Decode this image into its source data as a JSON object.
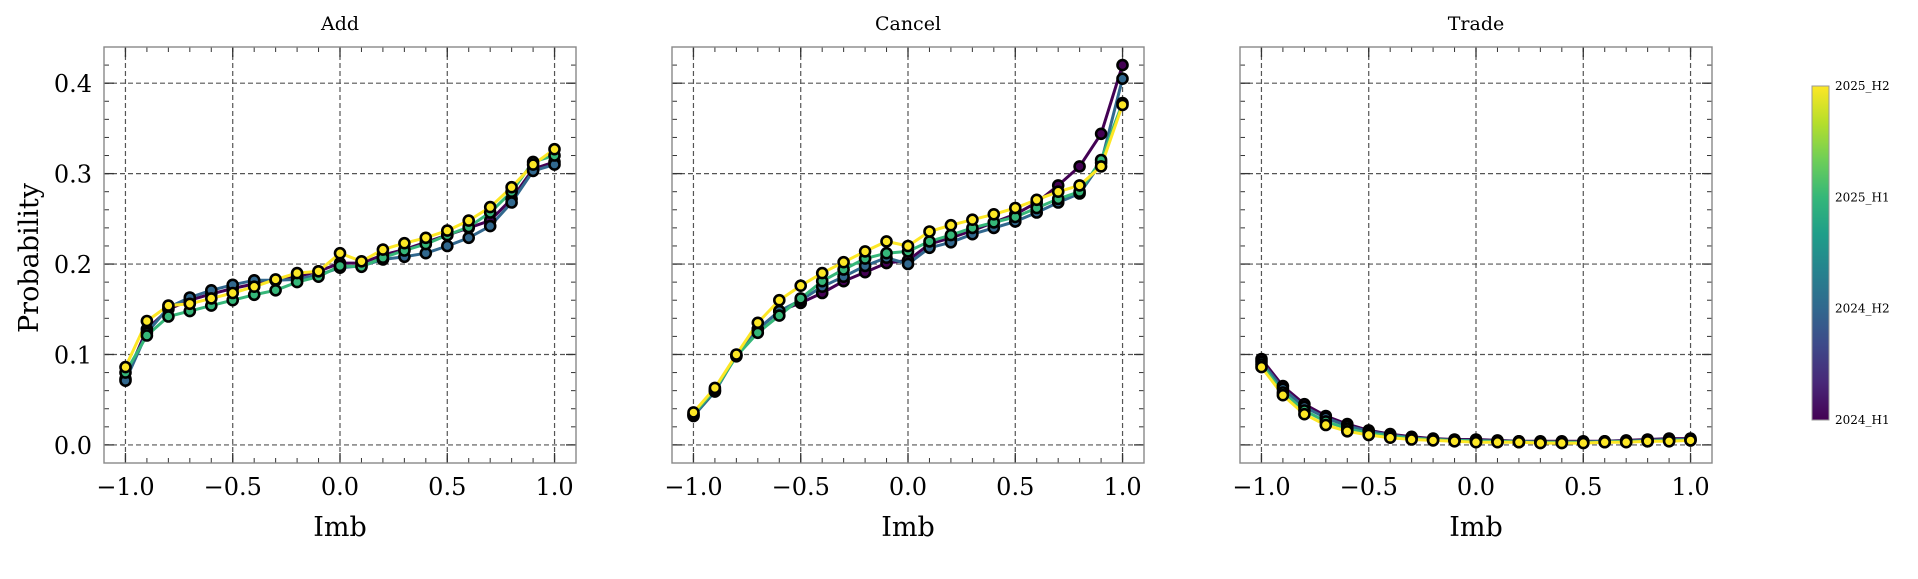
{
  "figure": {
    "ylabel": "Probability"
  },
  "chart_data": [
    {
      "type": "line",
      "title": "Add",
      "xlabel": "Imb",
      "ylabel": "Probability",
      "xlim": [
        -1.1,
        1.1
      ],
      "ylim": [
        -0.02,
        0.44
      ],
      "xticks": [
        -1.0,
        -0.5,
        0.0,
        0.5,
        1.0
      ],
      "xtick_labels": [
        "−1.0",
        "−0.5",
        "0.0",
        "0.5",
        "1.0"
      ],
      "yticks": [
        0.0,
        0.1,
        0.2,
        0.3,
        0.4
      ],
      "ytick_labels": [
        "0.0",
        "0.1",
        "0.2",
        "0.3",
        "0.4"
      ],
      "grid": true,
      "x": [
        -1.0,
        -0.9,
        -0.8,
        -0.7,
        -0.6,
        -0.5,
        -0.4,
        -0.3,
        -0.2,
        -0.1,
        0.0,
        0.1,
        0.2,
        0.3,
        0.4,
        0.5,
        0.6,
        0.7,
        0.8,
        0.9,
        1.0
      ],
      "series": [
        {
          "name": "2024_H1",
          "color": "#440154",
          "values": [
            0.073,
            0.128,
            0.15,
            0.16,
            0.167,
            0.173,
            0.178,
            0.182,
            0.186,
            0.192,
            0.201,
            0.201,
            0.21,
            0.216,
            0.224,
            0.232,
            0.24,
            0.248,
            0.272,
            0.305,
            0.313
          ]
        },
        {
          "name": "2024_H2",
          "color": "#31688e",
          "values": [
            0.071,
            0.124,
            0.152,
            0.163,
            0.171,
            0.177,
            0.182,
            0.182,
            0.183,
            0.188,
            0.196,
            0.198,
            0.205,
            0.208,
            0.212,
            0.22,
            0.229,
            0.242,
            0.268,
            0.303,
            0.31
          ]
        },
        {
          "name": "2025_H1",
          "color": "#35b779",
          "values": [
            0.08,
            0.121,
            0.142,
            0.148,
            0.154,
            0.16,
            0.166,
            0.171,
            0.18,
            0.186,
            0.198,
            0.197,
            0.207,
            0.215,
            0.222,
            0.232,
            0.241,
            0.257,
            0.28,
            0.313,
            0.32
          ]
        },
        {
          "name": "2025_H2",
          "color": "#fde725",
          "values": [
            0.086,
            0.137,
            0.154,
            0.156,
            0.162,
            0.168,
            0.175,
            0.183,
            0.19,
            0.192,
            0.212,
            0.203,
            0.216,
            0.223,
            0.229,
            0.237,
            0.248,
            0.263,
            0.285,
            0.31,
            0.327
          ]
        }
      ]
    },
    {
      "type": "line",
      "title": "Cancel",
      "xlabel": "Imb",
      "ylabel": "",
      "xlim": [
        -1.1,
        1.1
      ],
      "ylim": [
        -0.02,
        0.44
      ],
      "xticks": [
        -1.0,
        -0.5,
        0.0,
        0.5,
        1.0
      ],
      "xtick_labels": [
        "−1.0",
        "−0.5",
        "0.0",
        "0.5",
        "1.0"
      ],
      "yticks": [
        0.0,
        0.1,
        0.2,
        0.3,
        0.4
      ],
      "ytick_labels": [],
      "grid": true,
      "x": [
        -1.0,
        -0.9,
        -0.8,
        -0.7,
        -0.6,
        -0.5,
        -0.4,
        -0.3,
        -0.2,
        -0.1,
        0.0,
        0.1,
        0.2,
        0.3,
        0.4,
        0.5,
        0.6,
        0.7,
        0.8,
        0.9,
        1.0
      ],
      "series": [
        {
          "name": "2024_H1",
          "color": "#440154",
          "values": [
            0.033,
            0.06,
            0.099,
            0.128,
            0.148,
            0.157,
            0.168,
            0.181,
            0.191,
            0.201,
            0.204,
            0.222,
            0.229,
            0.237,
            0.246,
            0.255,
            0.268,
            0.287,
            0.308,
            0.344,
            0.42
          ]
        },
        {
          "name": "2024_H2",
          "color": "#31688e",
          "values": [
            0.032,
            0.059,
            0.099,
            0.128,
            0.148,
            0.16,
            0.175,
            0.186,
            0.198,
            0.207,
            0.2,
            0.218,
            0.224,
            0.233,
            0.24,
            0.247,
            0.257,
            0.268,
            0.278,
            0.312,
            0.405
          ]
        },
        {
          "name": "2025_H1",
          "color": "#35b779",
          "values": [
            0.034,
            0.061,
            0.098,
            0.124,
            0.143,
            0.162,
            0.181,
            0.194,
            0.206,
            0.212,
            0.214,
            0.225,
            0.232,
            0.24,
            0.246,
            0.252,
            0.262,
            0.272,
            0.28,
            0.315,
            0.378
          ]
        },
        {
          "name": "2025_H2",
          "color": "#fde725",
          "values": [
            0.036,
            0.063,
            0.1,
            0.135,
            0.16,
            0.176,
            0.19,
            0.202,
            0.214,
            0.225,
            0.22,
            0.236,
            0.243,
            0.249,
            0.255,
            0.262,
            0.271,
            0.28,
            0.287,
            0.308,
            0.376
          ]
        }
      ]
    },
    {
      "type": "line",
      "title": "Trade",
      "xlabel": "Imb",
      "ylabel": "",
      "xlim": [
        -1.1,
        1.1
      ],
      "ylim": [
        -0.02,
        0.44
      ],
      "xticks": [
        -1.0,
        -0.5,
        0.0,
        0.5,
        1.0
      ],
      "xtick_labels": [
        "−1.0",
        "−0.5",
        "0.0",
        "0.5",
        "1.0"
      ],
      "yticks": [
        0.0,
        0.1,
        0.2,
        0.3,
        0.4
      ],
      "ytick_labels": [],
      "grid": true,
      "x": [
        -1.0,
        -0.9,
        -0.8,
        -0.7,
        -0.6,
        -0.5,
        -0.4,
        -0.3,
        -0.2,
        -0.1,
        0.0,
        0.1,
        0.2,
        0.3,
        0.4,
        0.5,
        0.6,
        0.7,
        0.8,
        0.9,
        1.0
      ],
      "series": [
        {
          "name": "2024_H1",
          "color": "#440154",
          "values": [
            0.095,
            0.065,
            0.045,
            0.032,
            0.023,
            0.016,
            0.012,
            0.009,
            0.007,
            0.006,
            0.006,
            0.005,
            0.004,
            0.004,
            0.004,
            0.004,
            0.004,
            0.005,
            0.006,
            0.007,
            0.007
          ]
        },
        {
          "name": "2024_H2",
          "color": "#31688e",
          "values": [
            0.092,
            0.062,
            0.042,
            0.03,
            0.021,
            0.015,
            0.011,
            0.008,
            0.006,
            0.005,
            0.005,
            0.004,
            0.004,
            0.003,
            0.003,
            0.003,
            0.004,
            0.004,
            0.005,
            0.006,
            0.006
          ]
        },
        {
          "name": "2025_H1",
          "color": "#35b779",
          "values": [
            0.089,
            0.058,
            0.038,
            0.026,
            0.018,
            0.013,
            0.01,
            0.007,
            0.006,
            0.005,
            0.004,
            0.004,
            0.003,
            0.003,
            0.003,
            0.003,
            0.003,
            0.004,
            0.004,
            0.005,
            0.005
          ]
        },
        {
          "name": "2025_H2",
          "color": "#fde725",
          "values": [
            0.086,
            0.055,
            0.034,
            0.022,
            0.015,
            0.011,
            0.008,
            0.006,
            0.005,
            0.004,
            0.003,
            0.003,
            0.003,
            0.002,
            0.002,
            0.002,
            0.003,
            0.003,
            0.004,
            0.004,
            0.005
          ]
        }
      ]
    }
  ],
  "colorbar": {
    "ticks": [
      {
        "label": "2025_H2",
        "value": 1.0
      },
      {
        "label": "2025_H1",
        "value": 0.6667
      },
      {
        "label": "2024_H2",
        "value": 0.3333
      },
      {
        "label": "2024_H1",
        "value": 0.0
      }
    ],
    "colormap": [
      "#440154",
      "#482878",
      "#3e4989",
      "#31688e",
      "#26828e",
      "#1f9e89",
      "#35b779",
      "#6ece58",
      "#b5de2b",
      "#fde725"
    ]
  }
}
